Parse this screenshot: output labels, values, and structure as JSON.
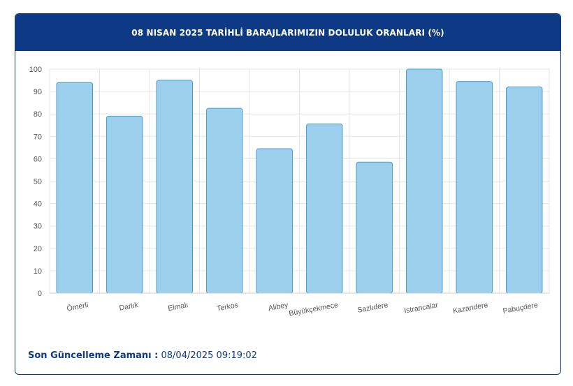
{
  "header": {
    "title": "08 NISAN 2025 TARİHLİ BARAJLARIMIZIN DOLULUK ORANLARI (%)"
  },
  "footer": {
    "label": "Son Güncelleme Zamanı :",
    "value": "08/04/2025 09:19:02"
  },
  "colors": {
    "header_bg": "#0e3a85",
    "bar_fill": "#9ccfeb",
    "bar_stroke": "#4a9fd0",
    "grid": "#e6e6e6"
  },
  "chart_data": {
    "type": "bar",
    "title": "08 NISAN 2025 TARİHLİ BARAJLARIMIZIN DOLULUK ORANLARI (%)",
    "categories": [
      "Ömerli",
      "Darlık",
      "Elmalı",
      "Terkos",
      "Alibey",
      "Büyükçekmece",
      "Sazlıdere",
      "Istrancalar",
      "Kazandere",
      "Pabuçdere"
    ],
    "values": [
      94,
      79,
      95,
      82.5,
      64.5,
      75.5,
      58.5,
      100,
      94.5,
      92
    ],
    "ylim": [
      0,
      100
    ],
    "yticks": [
      0,
      10,
      20,
      30,
      40,
      50,
      60,
      70,
      80,
      90,
      100
    ],
    "grid": true,
    "xlabel": "",
    "ylabel": ""
  }
}
